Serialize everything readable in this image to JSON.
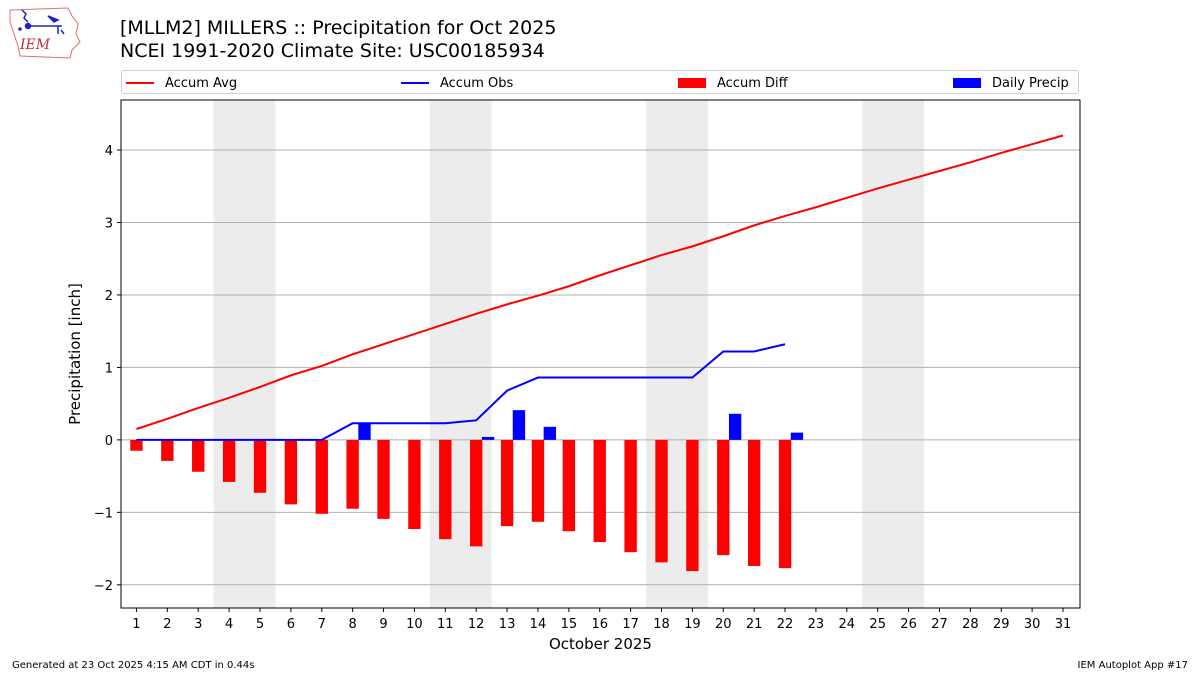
{
  "header": {
    "logo_text": "IEM",
    "title_line1": "[MLLM2] MILLERS :: Precipitation for Oct 2025",
    "title_line2": "NCEI 1991-2020 Climate Site: USC00185934"
  },
  "footer": {
    "generated": "Generated at 23 Oct 2025 4:15 AM CDT in 0.44s",
    "app": "IEM Autoplot App #17"
  },
  "colors": {
    "accum_avg": "#ff0000",
    "accum_obs": "#0000ff",
    "accum_diff": "#ff0000",
    "daily_precip": "#0000ff",
    "weekend_shade": "#ececec",
    "grid": "#b0b0b0"
  },
  "chart_data": {
    "type": "bar",
    "title": "[MLLM2] MILLERS :: Precipitation for Oct 2025",
    "subtitle": "NCEI 1991-2020 Climate Site: USC00185934",
    "xlabel": "October 2025",
    "ylabel": "Precipitation [inch]",
    "xlim": [
      0.5,
      31.55
    ],
    "ylim": [
      -2.32,
      4.69
    ],
    "grid": "y",
    "legend_position": "top",
    "x_ticks": [
      "1",
      "2",
      "3",
      "4",
      "5",
      "6",
      "7",
      "8",
      "9",
      "10",
      "11",
      "12",
      "13",
      "14",
      "15",
      "16",
      "17",
      "18",
      "19",
      "20",
      "21",
      "22",
      "23",
      "24",
      "25",
      "26",
      "27",
      "28",
      "29",
      "30",
      "31"
    ],
    "y_ticks": [
      -2,
      -1,
      0,
      1,
      2,
      3,
      4
    ],
    "y_tick_labels": [
      "−2",
      "−1",
      "0",
      "1",
      "2",
      "3",
      "4"
    ],
    "weekend_spans": [
      [
        3.5,
        5.5
      ],
      [
        10.5,
        12.5
      ],
      [
        17.5,
        19.5
      ],
      [
        24.5,
        26.5
      ]
    ],
    "series": [
      {
        "name": "Accum Avg",
        "kind": "line",
        "x": [
          1,
          2,
          3,
          4,
          5,
          6,
          7,
          8,
          9,
          10,
          11,
          12,
          13,
          14,
          15,
          16,
          17,
          18,
          19,
          20,
          21,
          22,
          23,
          24,
          25,
          26,
          27,
          28,
          29,
          30,
          31
        ],
        "values": [
          0.15,
          0.29,
          0.44,
          0.58,
          0.73,
          0.89,
          1.02,
          1.18,
          1.32,
          1.46,
          1.6,
          1.74,
          1.87,
          1.99,
          2.12,
          2.27,
          2.41,
          2.55,
          2.67,
          2.81,
          2.96,
          3.09,
          3.21,
          3.34,
          3.47,
          3.59,
          3.71,
          3.83,
          3.96,
          4.08,
          4.2
        ]
      },
      {
        "name": "Accum Obs",
        "kind": "line",
        "x": [
          1,
          2,
          3,
          4,
          5,
          6,
          7,
          8,
          9,
          10,
          11,
          12,
          13,
          14,
          15,
          16,
          17,
          18,
          19,
          20,
          21,
          22
        ],
        "values": [
          0,
          0,
          0,
          0,
          0,
          0,
          0,
          0.23,
          0.23,
          0.23,
          0.23,
          0.27,
          0.68,
          0.86,
          0.86,
          0.86,
          0.86,
          0.86,
          0.86,
          1.22,
          1.22,
          1.32
        ]
      },
      {
        "name": "Accum Diff",
        "kind": "bar",
        "x": [
          1,
          2,
          3,
          4,
          5,
          6,
          7,
          8,
          9,
          10,
          11,
          12,
          13,
          14,
          15,
          16,
          17,
          18,
          19,
          20,
          21,
          22
        ],
        "values": [
          -0.15,
          -0.29,
          -0.44,
          -0.58,
          -0.73,
          -0.89,
          -1.02,
          -0.95,
          -1.09,
          -1.23,
          -1.37,
          -1.47,
          -1.19,
          -1.13,
          -1.26,
          -1.41,
          -1.55,
          -1.69,
          -1.81,
          -1.59,
          -1.74,
          -1.77
        ]
      },
      {
        "name": "Daily Precip",
        "kind": "bar",
        "x": [
          8,
          12,
          13,
          14,
          20,
          22
        ],
        "values": [
          0.23,
          0.04,
          0.41,
          0.18,
          0.36,
          0.1
        ]
      }
    ]
  }
}
